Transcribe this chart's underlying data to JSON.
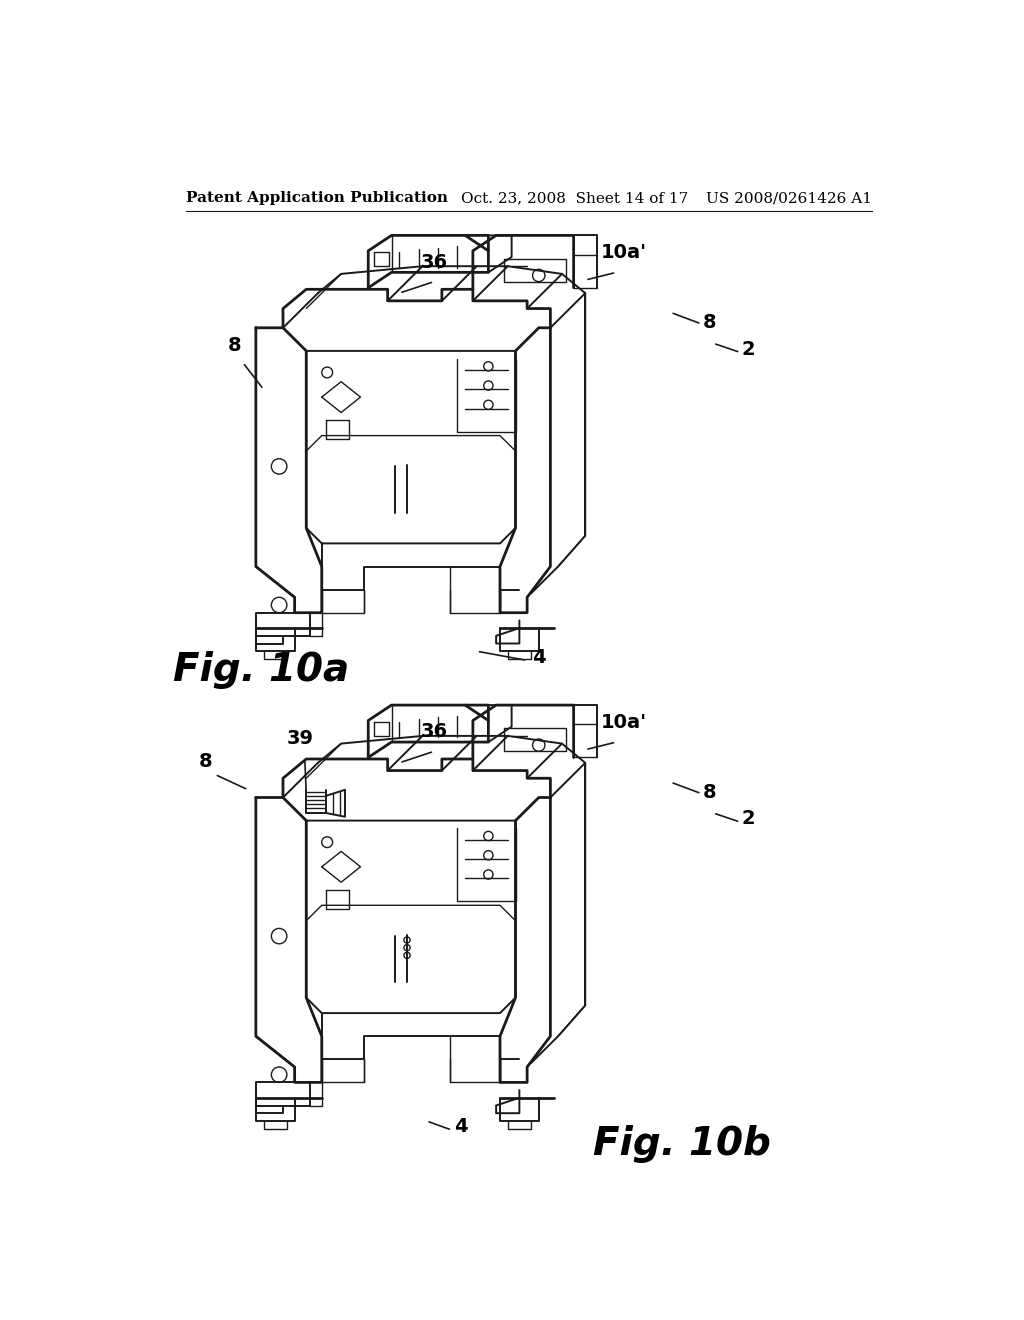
{
  "background_color": "#ffffff",
  "header_left": "Patent Application Publication",
  "header_center": "Oct. 23, 2008  Sheet 14 of 17",
  "header_right": "US 2008/0261426 A1",
  "fig_label_a": "Fig. 10a",
  "fig_label_b": "Fig. 10b",
  "text_color": "#000000",
  "line_color": "#1a1a1a",
  "header_fontsize": 11,
  "fig_label_fontsize": 28,
  "annotation_fontsize": 14
}
